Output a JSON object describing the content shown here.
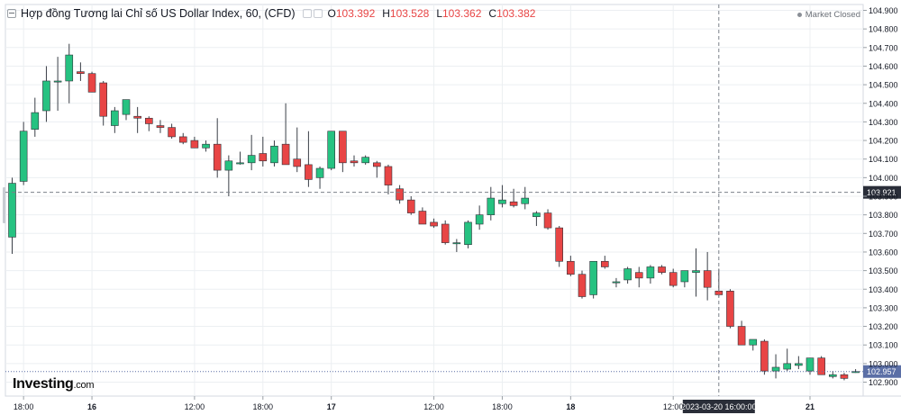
{
  "header": {
    "title": "Hợp đồng Tương lai Chỉ số US Dollar Index, 60, (CFD)",
    "o_label": "O",
    "o_value": "103.392",
    "h_label": "H",
    "h_value": "103.528",
    "l_label": "L",
    "l_value": "103.362",
    "c_label": "C",
    "c_value": "103.382"
  },
  "market_status": "Market Closed",
  "logo": {
    "brand": "Investing",
    "domain": ".com"
  },
  "colors": {
    "up": "#26c281",
    "down": "#e84545",
    "grid": "#eceff2",
    "axis_text": "#131722",
    "crosshair_label": "#2a2e39",
    "last_price_line": "#5b6fa6"
  },
  "chart_data": {
    "type": "candlestick",
    "ylim": [
      102.88,
      104.95
    ],
    "y_ticks": [
      "104.900",
      "104.800",
      "104.700",
      "104.600",
      "104.500",
      "104.400",
      "104.300",
      "104.200",
      "104.100",
      "104.000",
      "103.900",
      "103.800",
      "103.700",
      "103.600",
      "103.500",
      "103.400",
      "103.300",
      "103.200",
      "103.100",
      "103.000",
      "102.900"
    ],
    "x_ticks": [
      {
        "i": 1,
        "label": "18:00"
      },
      {
        "i": 7,
        "label": "16"
      },
      {
        "i": 16,
        "label": "12:00"
      },
      {
        "i": 22,
        "label": "18:00"
      },
      {
        "i": 28,
        "label": "17"
      },
      {
        "i": 37,
        "label": "12:00"
      },
      {
        "i": 43,
        "label": "18:00"
      },
      {
        "i": 49,
        "label": "18"
      },
      {
        "i": 58,
        "label": "12:00"
      },
      {
        "i": 70,
        "label": "21"
      }
    ],
    "crosshair": {
      "x_index": 62,
      "x_label": "2023-03-20 16:00:00",
      "y_value": 103.921,
      "y_label": "103.921"
    },
    "last_price": {
      "value": 102.957,
      "label": "102.957"
    },
    "candles": [
      {
        "o": 103.68,
        "h": 104.0,
        "l": 103.59,
        "c": 103.97
      },
      {
        "o": 103.98,
        "h": 104.3,
        "l": 103.96,
        "c": 104.25
      },
      {
        "o": 104.26,
        "h": 104.43,
        "l": 104.22,
        "c": 104.35
      },
      {
        "o": 104.36,
        "h": 104.6,
        "l": 104.3,
        "c": 104.52
      },
      {
        "o": 104.52,
        "h": 104.65,
        "l": 104.36,
        "c": 104.52
      },
      {
        "o": 104.52,
        "h": 104.72,
        "l": 104.4,
        "c": 104.66
      },
      {
        "o": 104.57,
        "h": 104.62,
        "l": 104.52,
        "c": 104.56
      },
      {
        "o": 104.56,
        "h": 104.57,
        "l": 104.46,
        "c": 104.46
      },
      {
        "o": 104.51,
        "h": 104.52,
        "l": 104.28,
        "c": 104.33
      },
      {
        "o": 104.28,
        "h": 104.38,
        "l": 104.24,
        "c": 104.36
      },
      {
        "o": 104.34,
        "h": 104.42,
        "l": 104.31,
        "c": 104.42
      },
      {
        "o": 104.33,
        "h": 104.38,
        "l": 104.24,
        "c": 104.32
      },
      {
        "o": 104.32,
        "h": 104.33,
        "l": 104.25,
        "c": 104.29
      },
      {
        "o": 104.28,
        "h": 104.31,
        "l": 104.24,
        "c": 104.27
      },
      {
        "o": 104.27,
        "h": 104.29,
        "l": 104.21,
        "c": 104.22
      },
      {
        "o": 104.22,
        "h": 104.24,
        "l": 104.18,
        "c": 104.19
      },
      {
        "o": 104.2,
        "h": 104.22,
        "l": 104.16,
        "c": 104.16
      },
      {
        "o": 104.16,
        "h": 104.2,
        "l": 104.14,
        "c": 104.18
      },
      {
        "o": 104.18,
        "h": 104.32,
        "l": 104.0,
        "c": 104.04
      },
      {
        "o": 104.04,
        "h": 104.12,
        "l": 103.9,
        "c": 104.09
      },
      {
        "o": 104.08,
        "h": 104.14,
        "l": 104.07,
        "c": 104.08
      },
      {
        "o": 104.08,
        "h": 104.23,
        "l": 104.04,
        "c": 104.12
      },
      {
        "o": 104.13,
        "h": 104.22,
        "l": 104.06,
        "c": 104.09
      },
      {
        "o": 104.08,
        "h": 104.2,
        "l": 104.06,
        "c": 104.17
      },
      {
        "o": 104.18,
        "h": 104.4,
        "l": 104.07,
        "c": 104.07
      },
      {
        "o": 104.1,
        "h": 104.27,
        "l": 104.03,
        "c": 104.06
      },
      {
        "o": 104.07,
        "h": 104.25,
        "l": 103.95,
        "c": 103.99
      },
      {
        "o": 104.0,
        "h": 104.06,
        "l": 103.94,
        "c": 104.05
      },
      {
        "o": 104.05,
        "h": 104.25,
        "l": 104.04,
        "c": 104.25
      },
      {
        "o": 104.25,
        "h": 104.25,
        "l": 104.03,
        "c": 104.08
      },
      {
        "o": 104.09,
        "h": 104.12,
        "l": 104.06,
        "c": 104.08
      },
      {
        "o": 104.08,
        "h": 104.12,
        "l": 104.07,
        "c": 104.11
      },
      {
        "o": 104.08,
        "h": 104.09,
        "l": 104.0,
        "c": 104.06
      },
      {
        "o": 104.06,
        "h": 104.07,
        "l": 103.91,
        "c": 103.96
      },
      {
        "o": 103.94,
        "h": 103.96,
        "l": 103.86,
        "c": 103.88
      },
      {
        "o": 103.88,
        "h": 103.9,
        "l": 103.8,
        "c": 103.81
      },
      {
        "o": 103.82,
        "h": 103.84,
        "l": 103.75,
        "c": 103.75
      },
      {
        "o": 103.76,
        "h": 103.78,
        "l": 103.73,
        "c": 103.74
      },
      {
        "o": 103.75,
        "h": 103.77,
        "l": 103.64,
        "c": 103.65
      },
      {
        "o": 103.65,
        "h": 103.67,
        "l": 103.6,
        "c": 103.65
      },
      {
        "o": 103.64,
        "h": 103.77,
        "l": 103.62,
        "c": 103.76
      },
      {
        "o": 103.75,
        "h": 103.85,
        "l": 103.72,
        "c": 103.8
      },
      {
        "o": 103.8,
        "h": 103.95,
        "l": 103.77,
        "c": 103.89
      },
      {
        "o": 103.86,
        "h": 103.96,
        "l": 103.84,
        "c": 103.88
      },
      {
        "o": 103.87,
        "h": 103.94,
        "l": 103.84,
        "c": 103.85
      },
      {
        "o": 103.86,
        "h": 103.95,
        "l": 103.83,
        "c": 103.89
      },
      {
        "o": 103.79,
        "h": 103.82,
        "l": 103.74,
        "c": 103.81
      },
      {
        "o": 103.81,
        "h": 103.83,
        "l": 103.72,
        "c": 103.73
      },
      {
        "o": 103.73,
        "h": 103.74,
        "l": 103.52,
        "c": 103.55
      },
      {
        "o": 103.55,
        "h": 103.58,
        "l": 103.47,
        "c": 103.48
      },
      {
        "o": 103.48,
        "h": 103.5,
        "l": 103.35,
        "c": 103.36
      },
      {
        "o": 103.37,
        "h": 103.55,
        "l": 103.35,
        "c": 103.55
      },
      {
        "o": 103.55,
        "h": 103.58,
        "l": 103.51,
        "c": 103.52
      },
      {
        "o": 103.44,
        "h": 103.46,
        "l": 103.41,
        "c": 103.44
      },
      {
        "o": 103.45,
        "h": 103.52,
        "l": 103.43,
        "c": 103.51
      },
      {
        "o": 103.49,
        "h": 103.52,
        "l": 103.41,
        "c": 103.46
      },
      {
        "o": 103.46,
        "h": 103.53,
        "l": 103.43,
        "c": 103.52
      },
      {
        "o": 103.52,
        "h": 103.53,
        "l": 103.48,
        "c": 103.49
      },
      {
        "o": 103.49,
        "h": 103.51,
        "l": 103.41,
        "c": 103.42
      },
      {
        "o": 103.44,
        "h": 103.5,
        "l": 103.41,
        "c": 103.5
      },
      {
        "o": 103.49,
        "h": 103.62,
        "l": 103.36,
        "c": 103.5
      },
      {
        "o": 103.5,
        "h": 103.6,
        "l": 103.34,
        "c": 103.41
      },
      {
        "o": 103.39,
        "h": 103.51,
        "l": 103.36,
        "c": 103.37
      },
      {
        "o": 103.39,
        "h": 103.4,
        "l": 103.19,
        "c": 103.2
      },
      {
        "o": 103.2,
        "h": 103.23,
        "l": 103.1,
        "c": 103.1
      },
      {
        "o": 103.1,
        "h": 103.13,
        "l": 103.07,
        "c": 103.13
      },
      {
        "o": 103.12,
        "h": 103.13,
        "l": 102.94,
        "c": 102.96
      },
      {
        "o": 102.96,
        "h": 103.05,
        "l": 102.92,
        "c": 102.98
      },
      {
        "o": 102.97,
        "h": 103.08,
        "l": 102.96,
        "c": 103.0
      },
      {
        "o": 102.99,
        "h": 103.04,
        "l": 102.97,
        "c": 103.0
      },
      {
        "o": 102.96,
        "h": 103.03,
        "l": 102.94,
        "c": 103.03
      },
      {
        "o": 103.03,
        "h": 103.04,
        "l": 102.94,
        "c": 102.94
      },
      {
        "o": 102.93,
        "h": 102.96,
        "l": 102.92,
        "c": 102.94
      },
      {
        "o": 102.94,
        "h": 102.95,
        "l": 102.91,
        "c": 102.92
      },
      {
        "o": 102.957,
        "h": 102.97,
        "l": 102.95,
        "c": 102.957
      }
    ]
  }
}
